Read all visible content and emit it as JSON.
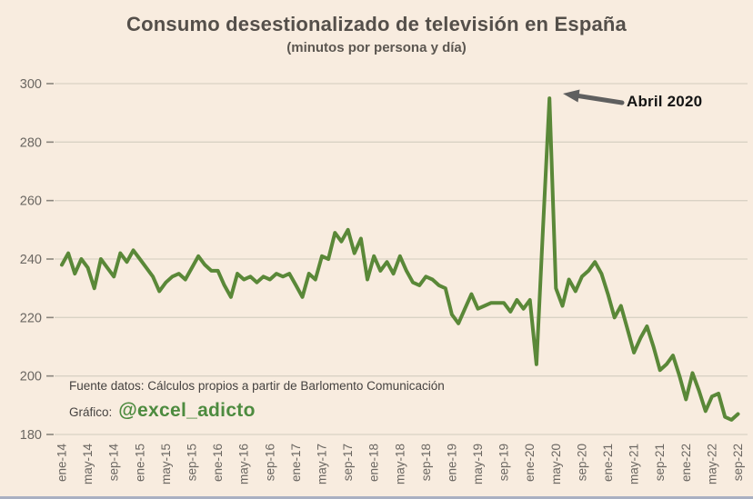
{
  "page": {
    "background_color": "#f8ecdf",
    "bottom_strip_color": "#a9b0c2"
  },
  "header": {
    "title": "Consumo desestionalizado de televisión en España",
    "subtitle": "(minutos por persona y día)"
  },
  "annotation": {
    "label": "Abril 2020",
    "arrow_color": "#5f5f5f",
    "points_to": {
      "month": "abr-20",
      "value": 295
    }
  },
  "footer": {
    "source_line": "Fuente datos: Cálculos propios a partir de Barlomento Comunicación",
    "credit_prefix": "Gráfico:",
    "credit_handle": "@excel_adicto",
    "credit_color": "#4d8b3f"
  },
  "chart_data": {
    "type": "line",
    "title": "Consumo desestionalizado de televisión en España",
    "subtitle": "(minutos por persona y día)",
    "xlabel": "",
    "ylabel": "minutos por persona y día",
    "ylim": [
      180,
      300
    ],
    "y_ticks": [
      180,
      200,
      220,
      240,
      260,
      280,
      300
    ],
    "grid": true,
    "legend": false,
    "line_color": "#5a8838",
    "grid_color": "#d9d2c4",
    "axis_text_color": "#6b6762",
    "frequency": "monthly",
    "x_start": "ene-14",
    "x_end": "sep-22",
    "x_tick_labels": [
      "ene-14",
      "may-14",
      "sep-14",
      "ene-15",
      "may-15",
      "sep-15",
      "ene-16",
      "may-16",
      "sep-16",
      "ene-17",
      "may-17",
      "sep-17",
      "ene-18",
      "may-18",
      "sep-18",
      "ene-19",
      "may-19",
      "sep-19",
      "ene-20",
      "may-20",
      "sep-20",
      "ene-21",
      "may-21",
      "sep-21",
      "ene-22",
      "may-22",
      "sep-22"
    ],
    "x": [
      "ene-14",
      "feb-14",
      "mar-14",
      "abr-14",
      "may-14",
      "jun-14",
      "jul-14",
      "ago-14",
      "sep-14",
      "oct-14",
      "nov-14",
      "dic-14",
      "ene-15",
      "feb-15",
      "mar-15",
      "abr-15",
      "may-15",
      "jun-15",
      "jul-15",
      "ago-15",
      "sep-15",
      "oct-15",
      "nov-15",
      "dic-15",
      "ene-16",
      "feb-16",
      "mar-16",
      "abr-16",
      "may-16",
      "jun-16",
      "jul-16",
      "ago-16",
      "sep-16",
      "oct-16",
      "nov-16",
      "dic-16",
      "ene-17",
      "feb-17",
      "mar-17",
      "abr-17",
      "may-17",
      "jun-17",
      "jul-17",
      "ago-17",
      "sep-17",
      "oct-17",
      "nov-17",
      "dic-17",
      "ene-18",
      "feb-18",
      "mar-18",
      "abr-18",
      "may-18",
      "jun-18",
      "jul-18",
      "ago-18",
      "sep-18",
      "oct-18",
      "nov-18",
      "dic-18",
      "ene-19",
      "feb-19",
      "mar-19",
      "abr-19",
      "may-19",
      "jun-19",
      "jul-19",
      "ago-19",
      "sep-19",
      "oct-19",
      "nov-19",
      "dic-19",
      "ene-20",
      "feb-20",
      "mar-20",
      "abr-20",
      "may-20",
      "jun-20",
      "jul-20",
      "ago-20",
      "sep-20",
      "oct-20",
      "nov-20",
      "dic-20",
      "ene-21",
      "feb-21",
      "mar-21",
      "abr-21",
      "may-21",
      "jun-21",
      "jul-21",
      "ago-21",
      "sep-21",
      "oct-21",
      "nov-21",
      "dic-21",
      "ene-22",
      "feb-22",
      "mar-22",
      "abr-22",
      "may-22",
      "jun-22",
      "jul-22",
      "ago-22",
      "sep-22"
    ],
    "series": [
      {
        "name": "Consumo de televisión desestacionalizado",
        "color": "#5a8838",
        "values": [
          238,
          242,
          235,
          240,
          237,
          230,
          240,
          237,
          234,
          242,
          239,
          243,
          240,
          237,
          234,
          229,
          232,
          234,
          235,
          233,
          237,
          241,
          238,
          236,
          236,
          231,
          227,
          235,
          233,
          234,
          232,
          234,
          233,
          235,
          234,
          235,
          231,
          227,
          235,
          233,
          241,
          240,
          249,
          246,
          250,
          242,
          247,
          233,
          241,
          236,
          239,
          235,
          241,
          236,
          232,
          231,
          234,
          233,
          231,
          230,
          221,
          218,
          223,
          228,
          223,
          224,
          225,
          225,
          225,
          222,
          226,
          223,
          226,
          204,
          250,
          295,
          230,
          224,
          233,
          229,
          234,
          236,
          239,
          235,
          228,
          220,
          224,
          216,
          208,
          213,
          217,
          210,
          202,
          204,
          207,
          200,
          192,
          201,
          195,
          188,
          193,
          194,
          186,
          185,
          187
        ]
      }
    ]
  }
}
